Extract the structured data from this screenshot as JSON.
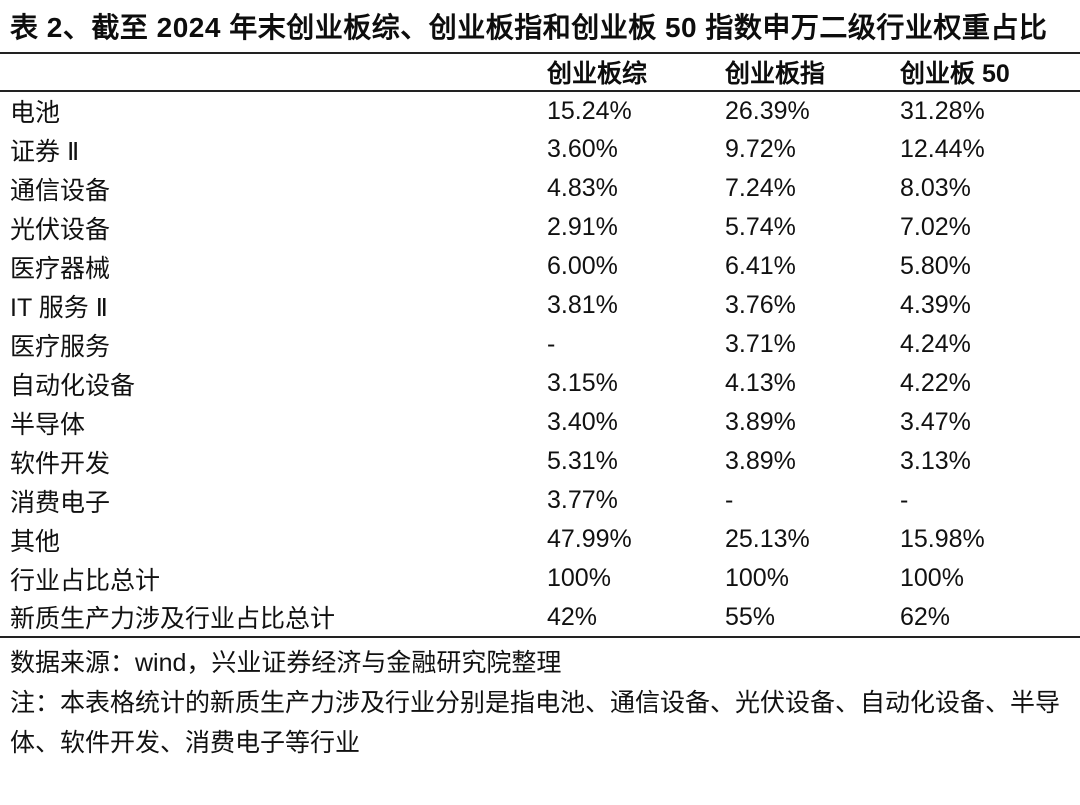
{
  "title": "表 2、截至 2024 年末创业板综、创业板指和创业板 50 指数申万二级行业权重占比",
  "table": {
    "columns": [
      "创业板综",
      "创业板指",
      "创业板 50"
    ],
    "rows": [
      {
        "label": "电池",
        "values": [
          "15.24%",
          "26.39%",
          "31.28%"
        ]
      },
      {
        "label": "证券 Ⅱ",
        "values": [
          "3.60%",
          "9.72%",
          "12.44%"
        ]
      },
      {
        "label": "通信设备",
        "values": [
          "4.83%",
          "7.24%",
          "8.03%"
        ]
      },
      {
        "label": "光伏设备",
        "values": [
          "2.91%",
          "5.74%",
          "7.02%"
        ]
      },
      {
        "label": "医疗器械",
        "values": [
          "6.00%",
          "6.41%",
          "5.80%"
        ]
      },
      {
        "label": "IT 服务 Ⅱ",
        "values": [
          "3.81%",
          "3.76%",
          "4.39%"
        ]
      },
      {
        "label": "医疗服务",
        "values": [
          "-",
          "3.71%",
          "4.24%"
        ]
      },
      {
        "label": "自动化设备",
        "values": [
          "3.15%",
          "4.13%",
          "4.22%"
        ]
      },
      {
        "label": "半导体",
        "values": [
          "3.40%",
          "3.89%",
          "3.47%"
        ]
      },
      {
        "label": "软件开发",
        "values": [
          "5.31%",
          "3.89%",
          "3.13%"
        ]
      },
      {
        "label": "消费电子",
        "values": [
          "3.77%",
          "-",
          "-"
        ]
      },
      {
        "label": "其他",
        "values": [
          "47.99%",
          "25.13%",
          "15.98%"
        ]
      },
      {
        "label": "行业占比总计",
        "values": [
          "100%",
          "100%",
          "100%"
        ]
      },
      {
        "label": "新质生产力涉及行业占比总计",
        "values": [
          "42%",
          "55%",
          "62%"
        ]
      }
    ]
  },
  "footer": {
    "source": "数据来源：wind，兴业证券经济与金融研究院整理",
    "note": "注：本表格统计的新质生产力涉及行业分别是指电池、通信设备、光伏设备、自动化设备、半导体、软件开发、消费电子等行业"
  },
  "colors": {
    "text": "#111111",
    "rule": "#222222",
    "background": "#ffffff"
  }
}
